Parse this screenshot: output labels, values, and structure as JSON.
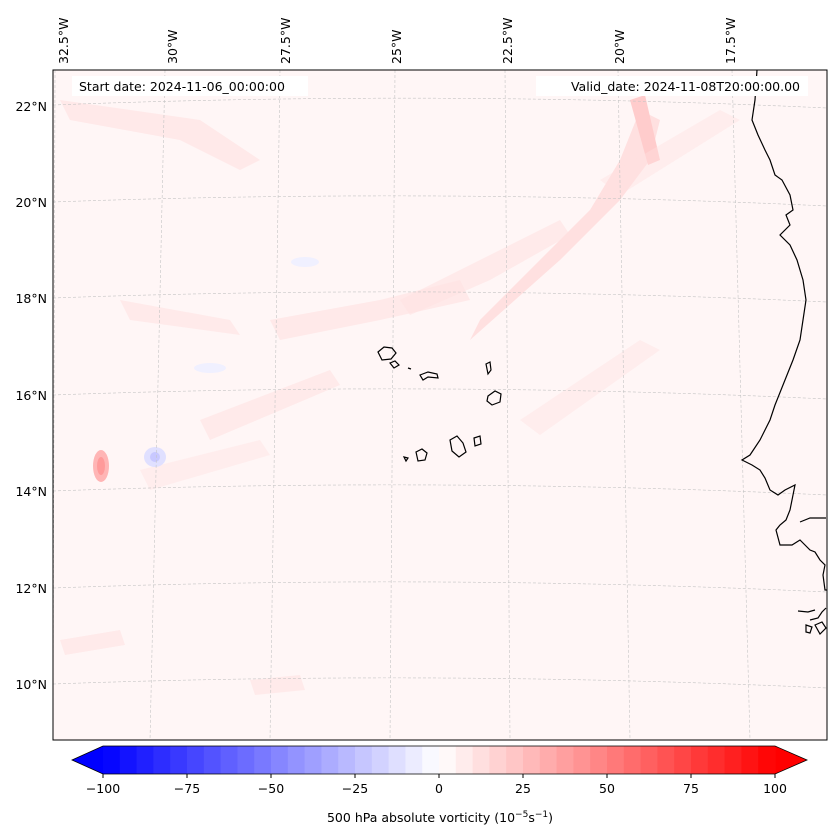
{
  "header": {
    "start_date": "Start date: 2024-11-06_00:00:00",
    "valid_date": "Valid_date: 2024-11-08T20:00:00.00"
  },
  "longitude_labels": [
    "32.5°W",
    "30°W",
    "27.5°W",
    "25°W",
    "22.5°W",
    "20°W",
    "17.5°W"
  ],
  "latitude_labels": [
    "22°N",
    "20°N",
    "18°N",
    "16°N",
    "14°N",
    "12°N",
    "10°N"
  ],
  "colorbar": {
    "ticks": [
      "−100",
      "−75",
      "−50",
      "−25",
      "0",
      "25",
      "50",
      "75",
      "100"
    ],
    "title_main": "500 hPa absolute vorticity (10",
    "title_exp1": "−5",
    "title_mid": "s",
    "title_exp2": "−1",
    "title_end": ")",
    "min": -100,
    "max": 100,
    "step": 5,
    "color_low": "#0000ff",
    "color_mid": "#ffffff",
    "color_high": "#ff0000"
  },
  "map_style": {
    "background": "#fff5f5",
    "coastline_color": "#000000",
    "grid_color": "#bbbbbb"
  }
}
